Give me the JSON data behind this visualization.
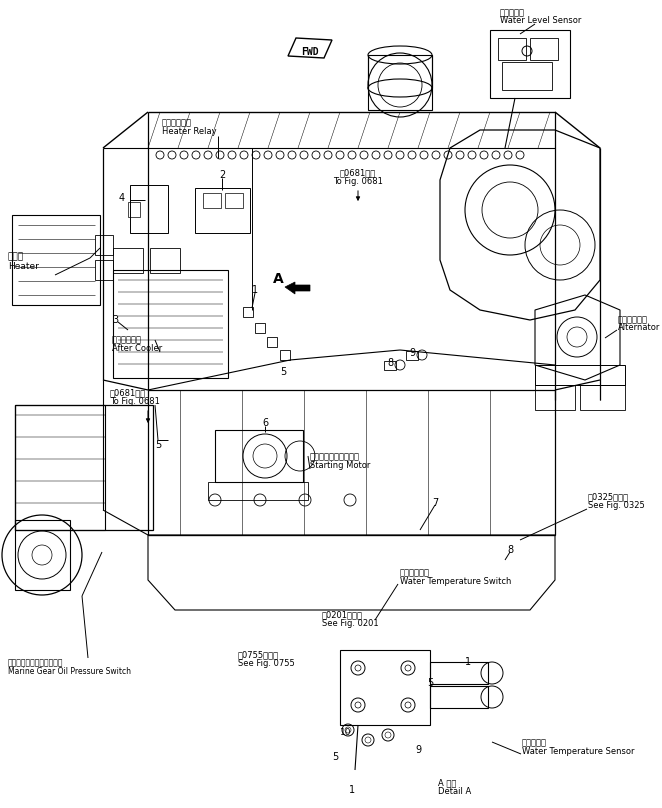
{
  "background_color": "#ffffff",
  "line_color": "#000000",
  "fig_size": [
    6.62,
    8.08
  ],
  "dpi": 100,
  "labels": {
    "water_level_sensor_jp": "水位センサ",
    "water_level_sensor_en": "Water Level Sensor",
    "heater_relay_jp": "ヒータリレー",
    "heater_relay_en": "Heater Relay",
    "heater_jp": "ヒータ",
    "heater_en": "Heater",
    "after_cooler_jp": "アフタクーラ",
    "after_cooler_en": "After Cooler",
    "to_fig_0681_jp": "図0681図へ",
    "to_fig_0681_en": "To Fig. 0681",
    "starting_motor_jp": "スターティングモータ",
    "starting_motor_en": "Starting Motor",
    "alternator_jp": "オルタネータ",
    "alternator_en": "Alternator",
    "see_fig_0325_jp": "図0325図参照",
    "see_fig_0325_en": "See Fig. 0325",
    "water_temp_switch_jp": "水温スイッチ",
    "water_temp_switch_en": "Water Temperature Switch",
    "see_fig_0201_jp": "図0201図参照",
    "see_fig_0201_en": "See Fig. 0201",
    "see_fig_0755_jp": "図0755図参照",
    "see_fig_0755_en": "See Fig. 0755",
    "marine_gear_jp": "マリンギヤー油圧スイッチ",
    "marine_gear_en": "Marine Gear Oil Pressure Switch",
    "water_temp_sensor_jp": "水温センサ",
    "water_temp_sensor_en": "Water Temperature Sensor",
    "detail_a_jp": "A 詳細",
    "detail_a_en": "Detail A",
    "fwd_label": "FWD",
    "label_A": "A"
  }
}
